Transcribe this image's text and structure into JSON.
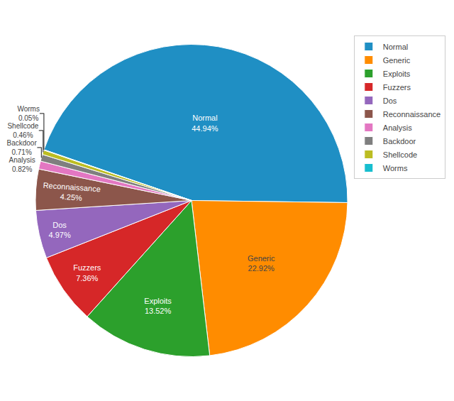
{
  "chart_data": {
    "type": "pie",
    "categories": [
      "Normal",
      "Generic",
      "Exploits",
      "Fuzzers",
      "Dos",
      "Reconnaissance",
      "Analysis",
      "Backdoor",
      "Shellcode",
      "Worms"
    ],
    "values": [
      44.94,
      22.92,
      13.52,
      7.36,
      4.97,
      4.25,
      0.82,
      0.71,
      0.46,
      0.05
    ],
    "value_labels": [
      "44.94%",
      "22.92%",
      "13.52%",
      "7.36%",
      "4.97%",
      "4.25%",
      "0.82%",
      "0.71%",
      "0.46%",
      "0.05%"
    ],
    "colors": [
      "#1f8fc4",
      "#ff8c00",
      "#2ca02c",
      "#d62728",
      "#9467bd",
      "#8c564b",
      "#e377c2",
      "#7f7f7f",
      "#bcbd22",
      "#17becf"
    ],
    "data_labels": true,
    "legend": "upper right"
  }
}
